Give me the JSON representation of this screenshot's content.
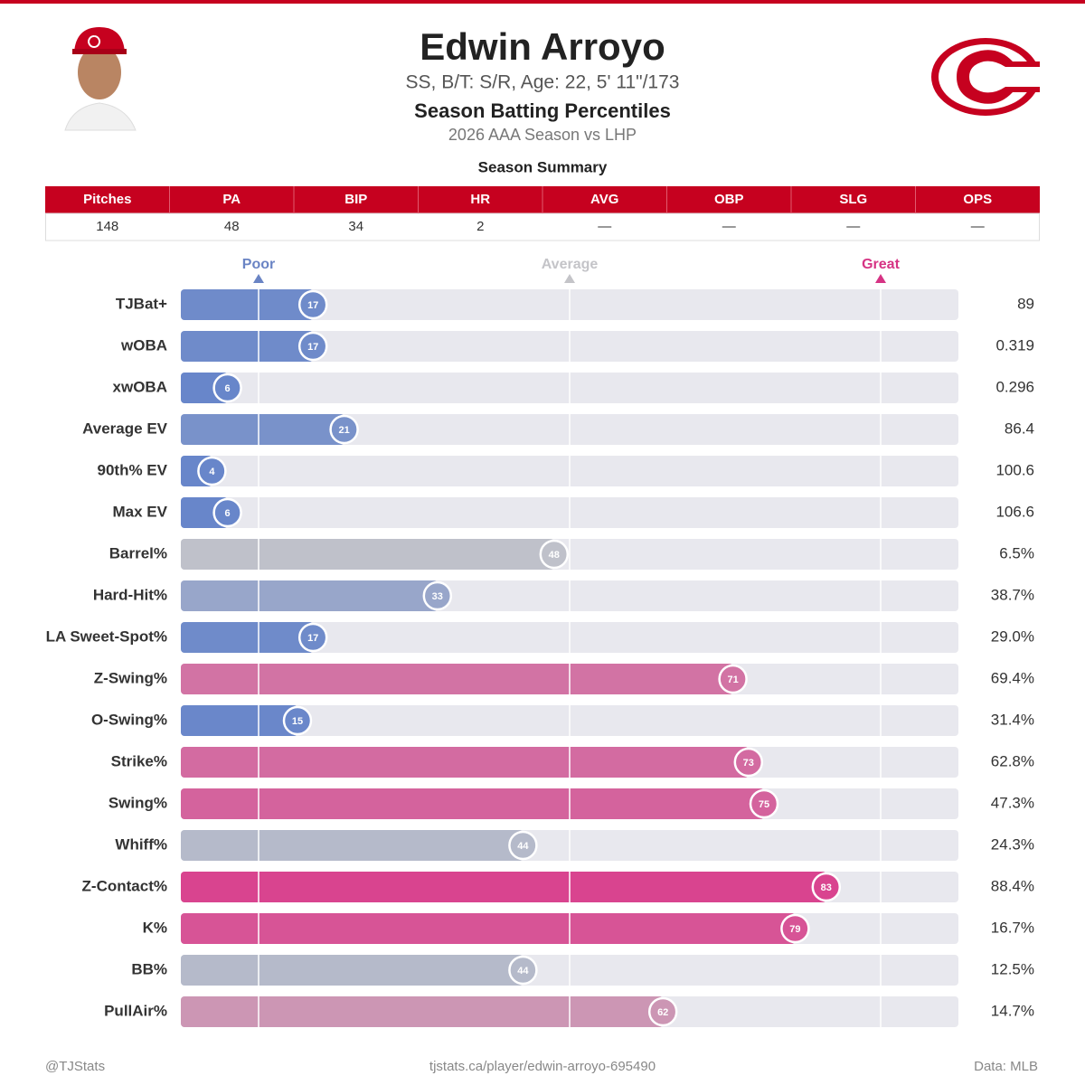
{
  "header": {
    "name": "Edwin Arroyo",
    "bio": "SS, B/T: S/R, Age: 22, 5' 11\"/173",
    "title": "Season Batting Percentiles",
    "subtitle": "2026 AAA Season vs LHP"
  },
  "summary": {
    "title": "Season Summary",
    "columns": [
      "Pitches",
      "PA",
      "BIP",
      "HR",
      "AVG",
      "OBP",
      "SLG",
      "OPS"
    ],
    "values": [
      148,
      48,
      34,
      2,
      "—",
      "—",
      "—",
      "—"
    ]
  },
  "chart_data": {
    "type": "percentile_bar",
    "categories": [
      "TJBat+",
      "wOBA",
      "xwOBA",
      "Average EV",
      "90th% EV",
      "Max EV",
      "Barrel%",
      "Hard-Hit%",
      "LA Sweet-Spot%",
      "Z-Swing%",
      "O-Swing%",
      "Strike%",
      "Swing%",
      "Whiff%",
      "Z-Contact%",
      "K%",
      "BB%",
      "PullAir%"
    ],
    "values": [
      17,
      17,
      6,
      21,
      4,
      6,
      48,
      33,
      17,
      71,
      15,
      73,
      75,
      44,
      83,
      79,
      44,
      62
    ],
    "stats": [
      "89",
      "0.319",
      "0.296",
      "86.4",
      "100.6",
      "106.6",
      "6.5%",
      "38.7%",
      "29.0%",
      "69.4%",
      "31.4%",
      "62.8%",
      "47.3%",
      "24.3%",
      "88.4%",
      "16.7%",
      "12.5%",
      "14.7%"
    ],
    "xlim": [
      0,
      100
    ],
    "markers": [
      {
        "value": 10,
        "label": "Poor"
      },
      {
        "value": 50,
        "label": "Average"
      },
      {
        "value": 90,
        "label": "Great"
      }
    ]
  },
  "footer": {
    "left": "@TJStats",
    "center": "tjstats.ca/player/edwin-arroyo-695490",
    "right": "Data: MLB"
  }
}
